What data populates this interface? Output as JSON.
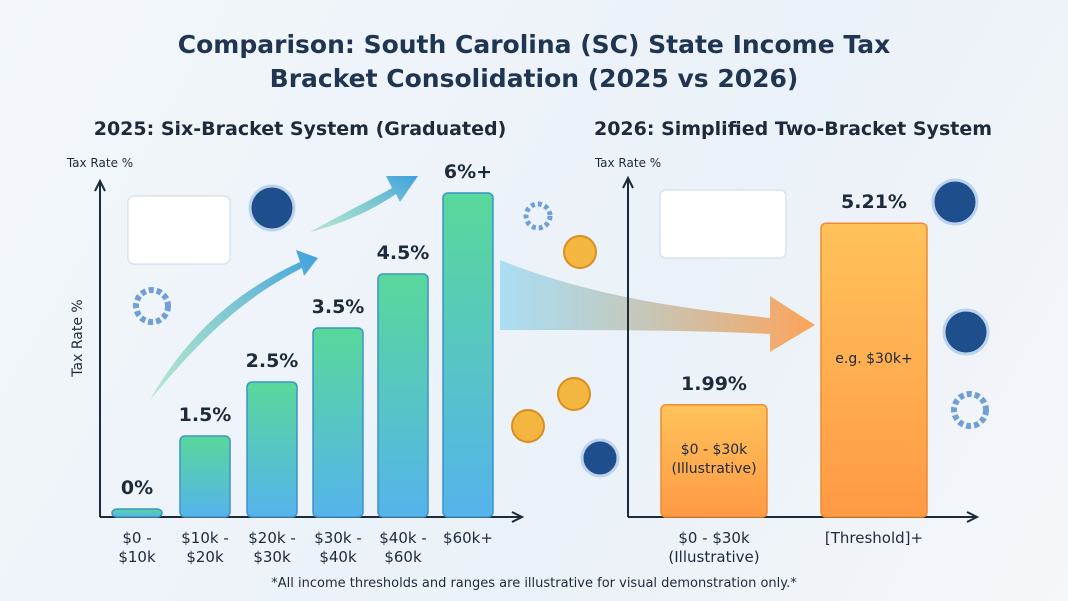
{
  "title": "Comparison: South Carolina (SC) State Income Tax Bracket Consolidation (2025 vs 2026)",
  "footnote": "*All income thresholds and ranges are illustrative for visual demonstration only.*",
  "chart_data": [
    {
      "type": "bar",
      "subtitle": "2025: Six-Bracket System (Graduated)",
      "y_label": "Tax Rate %",
      "categories": [
        "$0 - $10k",
        "$10k - $20k",
        "$20k - $30k",
        "$30k - $40k",
        "$40k - $60k",
        "$60k+"
      ],
      "values": [
        0,
        1.5,
        2.5,
        3.5,
        4.5,
        6
      ],
      "value_labels": [
        "0%",
        "1.5%",
        "2.5%",
        "3.5%",
        "4.5%",
        "6%+"
      ],
      "colors": [
        "#56b3ec",
        "#58d89a"
      ],
      "ylim": [
        0,
        6
      ]
    },
    {
      "type": "bar",
      "subtitle": "2026: Simplified Two-Bracket System",
      "y_label": "Tax Rate %",
      "categories": [
        "$0 - $30k (Illustrative)",
        "[Threshold]+"
      ],
      "values": [
        1.99,
        5.21
      ],
      "value_labels": [
        "1.99%",
        "5.21%"
      ],
      "bar_labels": [
        "$0 - $30k (Illustrative)",
        "e.g. $30k+"
      ],
      "colors": [
        "#ffc25a",
        "#ff9a45"
      ],
      "ylim": [
        0,
        5.8
      ]
    }
  ]
}
